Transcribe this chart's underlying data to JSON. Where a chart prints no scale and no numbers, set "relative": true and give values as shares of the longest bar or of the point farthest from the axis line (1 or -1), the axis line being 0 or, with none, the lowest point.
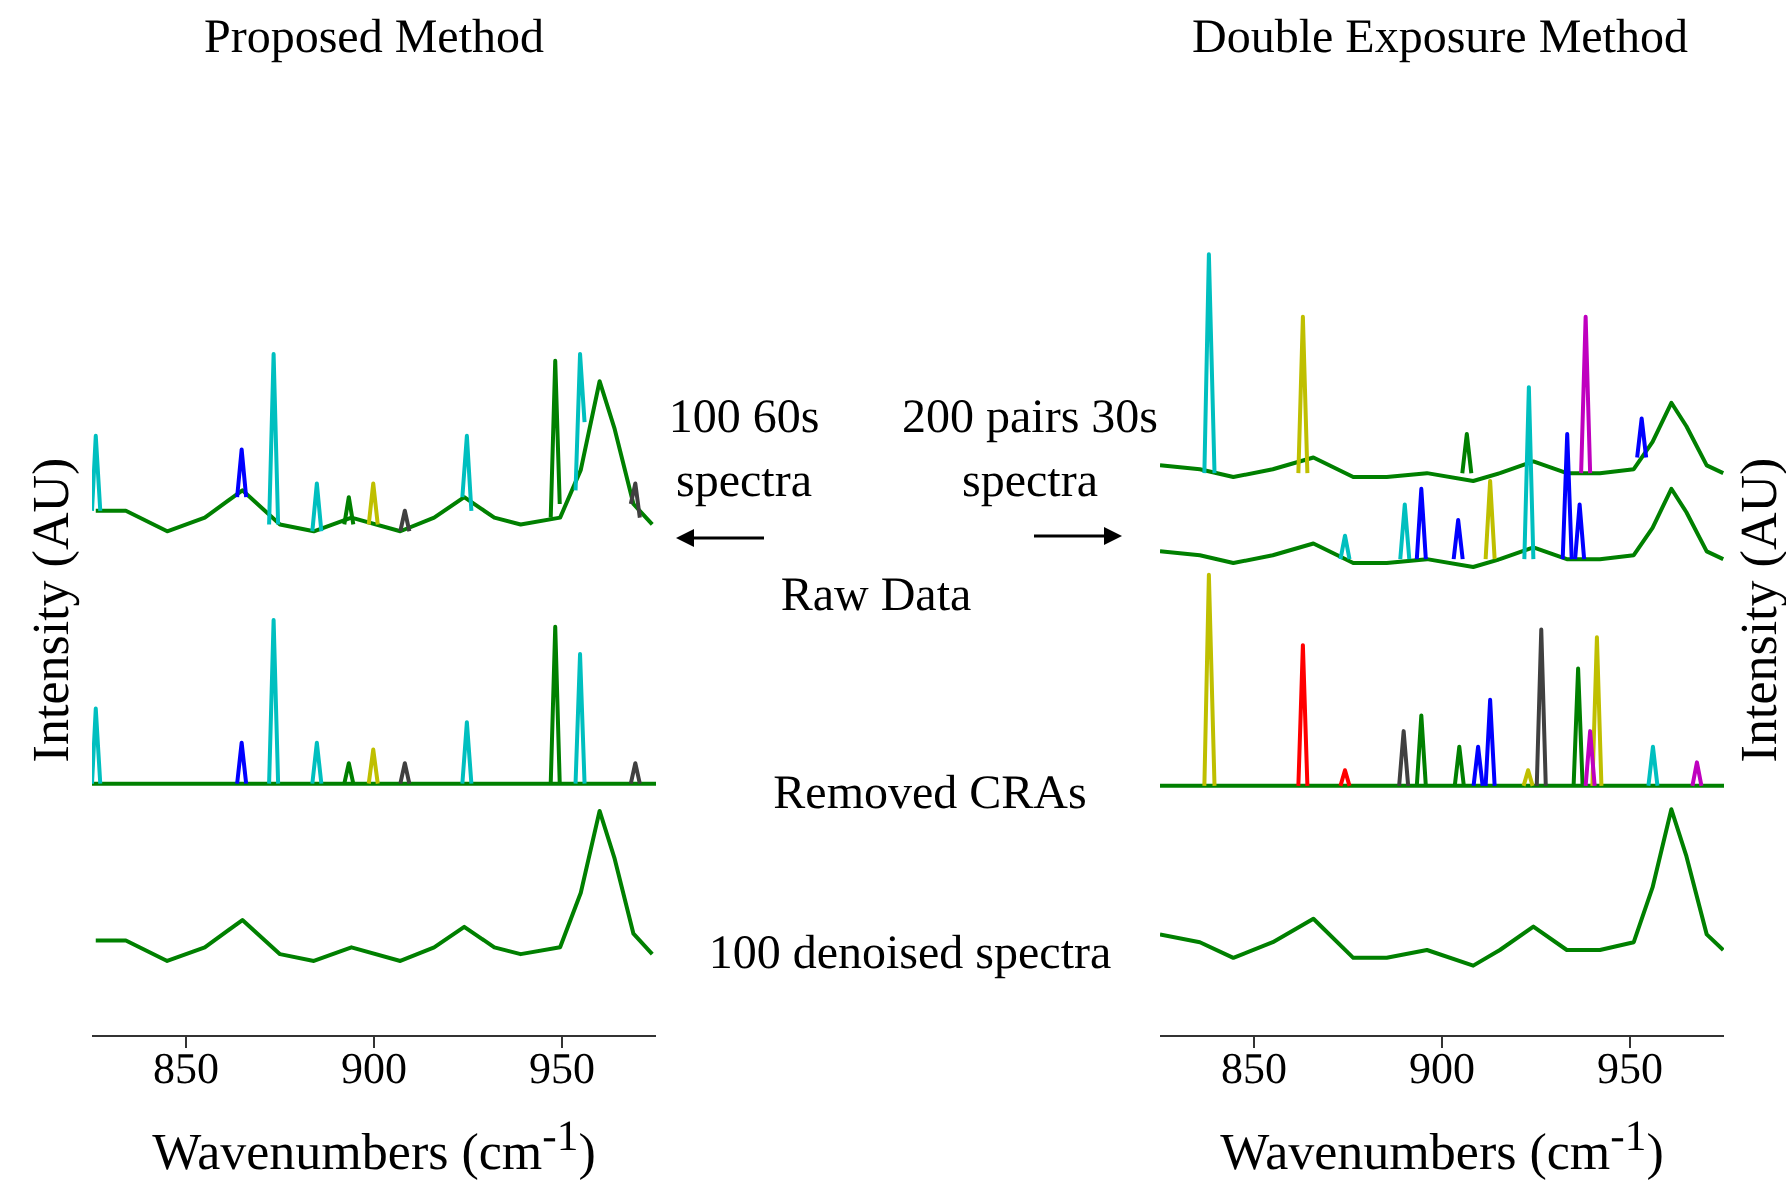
{
  "chart_data": [
    {
      "type": "line",
      "title": "Proposed Method",
      "xlabel": "Wavenumbers (cm$^{-1}$)",
      "ylabel": "Intensity (AU)",
      "relative": true,
      "xlim": [
        825,
        975
      ],
      "xticks": [
        850,
        900,
        950
      ],
      "annotations": [
        "100 60s spectra",
        "Raw Data",
        "Removed CRAs",
        "100 denoised spectra"
      ],
      "series": [
        {
          "color": "#008000",
          "x": [
            826,
            834,
            845,
            855,
            865,
            875,
            884,
            894,
            907,
            916,
            924,
            932,
            939,
            949.5,
            955,
            960,
            964,
            969,
            974
          ],
          "values": [
            0.77,
            0.77,
            0.74,
            0.76,
            0.8,
            0.75,
            0.74,
            0.76,
            0.74,
            0.76,
            0.79,
            0.76,
            0.75,
            0.76,
            0.83,
            0.96,
            0.89,
            0.78,
            0.75
          ]
        },
        {
          "color": "#008000",
          "x": [
            825,
            975
          ],
          "values": [
            0.37,
            0.37
          ]
        },
        {
          "color": "#008000",
          "x": [
            826,
            834,
            845,
            855,
            865,
            875,
            884,
            894,
            907,
            916,
            924,
            932,
            939,
            949.5,
            955,
            960,
            964,
            969,
            974
          ],
          "values": [
            0.14,
            0.14,
            0.11,
            0.13,
            0.17,
            0.12,
            0.11,
            0.13,
            0.11,
            0.13,
            0.16,
            0.13,
            0.12,
            0.13,
            0.21,
            0.33,
            0.26,
            0.15,
            0.12
          ]
        },
        {
          "color": "#00bfbf",
          "x": [
            825,
            826,
            827.2
          ],
          "values": [
            0.77,
            0.88,
            0.77
          ]
        },
        {
          "color": "#00bfbf",
          "x": [
            872.1,
            873.3,
            874.5
          ],
          "values": [
            0.75,
            1,
            0.75
          ]
        },
        {
          "color": "#00bfbf",
          "x": [
            883.6,
            884.8,
            886
          ],
          "values": [
            0.74,
            0.81,
            0.74
          ]
        },
        {
          "color": "#00bfbf",
          "x": [
            923.5,
            924.7,
            925.9
          ],
          "values": [
            0.79,
            0.88,
            0.77
          ]
        },
        {
          "color": "#00bfbf",
          "x": [
            953.6,
            954.8,
            956
          ],
          "values": [
            0.8,
            1,
            0.9
          ]
        },
        {
          "color": "#00bfbf",
          "x": [
            825,
            826,
            827.2
          ],
          "values": [
            0.37,
            0.48,
            0.37
          ]
        },
        {
          "color": "#00bfbf",
          "x": [
            872.1,
            873.3,
            874.5
          ],
          "values": [
            0.37,
            0.61,
            0.37
          ]
        },
        {
          "color": "#00bfbf",
          "x": [
            883.6,
            884.8,
            886
          ],
          "values": [
            0.37,
            0.43,
            0.37
          ]
        },
        {
          "color": "#00bfbf",
          "x": [
            923.5,
            924.7,
            925.9
          ],
          "values": [
            0.37,
            0.46,
            0.37
          ]
        },
        {
          "color": "#00bfbf",
          "x": [
            953.6,
            954.8,
            956
          ],
          "values": [
            0.37,
            0.56,
            0.37
          ]
        },
        {
          "color": "#0000ff",
          "x": [
            863.6,
            864.8,
            866
          ],
          "values": [
            0.79,
            0.86,
            0.79
          ]
        },
        {
          "color": "#0000ff",
          "x": [
            863.6,
            864.8,
            866
          ],
          "values": [
            0.37,
            0.43,
            0.37
          ]
        },
        {
          "color": "#008000",
          "x": [
            892.1,
            893.3,
            894.5
          ],
          "values": [
            0.75,
            0.79,
            0.75
          ]
        },
        {
          "color": "#008000",
          "x": [
            947,
            948.2,
            949.4
          ],
          "values": [
            0.76,
            0.99,
            0.78
          ]
        },
        {
          "color": "#008000",
          "x": [
            892.1,
            893.3,
            894.5
          ],
          "values": [
            0.37,
            0.4,
            0.37
          ]
        },
        {
          "color": "#008000",
          "x": [
            947,
            948.2,
            949.4
          ],
          "values": [
            0.37,
            0.6,
            0.37
          ]
        },
        {
          "color": "#bfbf00",
          "x": [
            898.6,
            899.8,
            901
          ],
          "values": [
            0.75,
            0.81,
            0.75
          ]
        },
        {
          "color": "#bfbf00",
          "x": [
            898.6,
            899.8,
            901
          ],
          "values": [
            0.37,
            0.42,
            0.37
          ]
        },
        {
          "color": "#404040",
          "x": [
            907,
            908.2,
            909.4
          ],
          "values": [
            0.74,
            0.77,
            0.74
          ]
        },
        {
          "color": "#404040",
          "x": [
            968.3,
            969.5,
            970.7
          ],
          "values": [
            0.78,
            0.81,
            0.76
          ]
        },
        {
          "color": "#404040",
          "x": [
            907,
            908.2,
            909.4
          ],
          "values": [
            0.37,
            0.4,
            0.37
          ]
        },
        {
          "color": "#404040",
          "x": [
            968.3,
            969.5,
            970.7
          ],
          "values": [
            0.37,
            0.4,
            0.37
          ]
        }
      ]
    },
    {
      "type": "line",
      "title": "Double Exposure Method",
      "xlabel": "Wavenumbers (cm$^{-1}$)",
      "ylabel": "Intensity (AU)",
      "relative": true,
      "xlim": [
        825,
        975
      ],
      "xticks": [
        850,
        900,
        950
      ],
      "annotations": [
        "200 pairs 30s spectra"
      ],
      "series": [
        {
          "color": "#008000",
          "x": [
            825,
            835.6,
            844.5,
            855,
            865.8,
            876.4,
            885.3,
            896,
            908.3,
            915.4,
            924.3,
            933.2,
            942,
            951,
            956,
            961,
            965,
            970.4,
            974.8
          ],
          "values": [
            0.73,
            0.725,
            0.715,
            0.725,
            0.74,
            0.715,
            0.715,
            0.72,
            0.71,
            0.72,
            0.735,
            0.72,
            0.72,
            0.725,
            0.76,
            0.81,
            0.78,
            0.73,
            0.72
          ]
        },
        {
          "color": "#008000",
          "x": [
            825,
            835.6,
            844.5,
            855,
            865.8,
            876.4,
            885.3,
            896,
            908.3,
            915.4,
            924.3,
            933.2,
            942,
            951,
            956,
            961,
            965,
            970.4,
            974.8
          ],
          "values": [
            0.62,
            0.615,
            0.605,
            0.615,
            0.63,
            0.605,
            0.605,
            0.61,
            0.6,
            0.61,
            0.625,
            0.61,
            0.61,
            0.615,
            0.65,
            0.7,
            0.67,
            0.62,
            0.61
          ]
        },
        {
          "color": "#008000",
          "x": [
            825,
            975
          ],
          "values": [
            0.32,
            0.32
          ]
        },
        {
          "color": "#008000",
          "x": [
            825,
            835.6,
            844.5,
            855,
            865.8,
            876.4,
            885.3,
            896,
            908.3,
            915.4,
            924.3,
            933.2,
            942,
            951,
            956,
            961,
            965,
            970.4,
            974.8
          ],
          "values": [
            0.13,
            0.12,
            0.1,
            0.12,
            0.15,
            0.1,
            0.1,
            0.11,
            0.09,
            0.11,
            0.14,
            0.11,
            0.11,
            0.12,
            0.19,
            0.29,
            0.23,
            0.13,
            0.11
          ]
        },
        {
          "color": "#00bfbf",
          "x": [
            836.8,
            838,
            839.5
          ],
          "values": [
            0.72,
            1,
            0.72
          ]
        },
        {
          "color": "#00bfbf",
          "x": [
            873,
            874.2,
            875.4
          ],
          "values": [
            0.61,
            0.64,
            0.61
          ]
        },
        {
          "color": "#00bfbf",
          "x": [
            888.9,
            890.1,
            891.3
          ],
          "values": [
            0.61,
            0.68,
            0.61
          ]
        },
        {
          "color": "#00bfbf",
          "x": [
            921.9,
            923.1,
            924.3
          ],
          "values": [
            0.61,
            0.83,
            0.61
          ]
        },
        {
          "color": "#00bfbf",
          "x": [
            954.9,
            956.1,
            957.3
          ],
          "values": [
            0.32,
            0.37,
            0.32
          ]
        },
        {
          "color": "#bfbf00",
          "x": [
            861.8,
            863,
            864.2
          ],
          "values": [
            0.72,
            0.92,
            0.72
          ]
        },
        {
          "color": "#bfbf00",
          "x": [
            911.6,
            912.8,
            914
          ],
          "values": [
            0.61,
            0.71,
            0.61
          ]
        },
        {
          "color": "#bfbf00",
          "x": [
            836.8,
            838,
            839.5
          ],
          "values": [
            0.32,
            0.59,
            0.32
          ]
        },
        {
          "color": "#bfbf00",
          "x": [
            921.7,
            922.9,
            924.1
          ],
          "values": [
            0.32,
            0.34,
            0.32
          ]
        },
        {
          "color": "#bfbf00",
          "x": [
            940,
            941.2,
            942.4
          ],
          "values": [
            0.32,
            0.51,
            0.32
          ]
        },
        {
          "color": "#008000",
          "x": [
            905.4,
            906.6,
            907.8
          ],
          "values": [
            0.72,
            0.77,
            0.72
          ]
        },
        {
          "color": "#008000",
          "x": [
            893.3,
            894.5,
            895.7
          ],
          "values": [
            0.32,
            0.41,
            0.32
          ]
        },
        {
          "color": "#008000",
          "x": [
            903.4,
            904.6,
            905.8
          ],
          "values": [
            0.32,
            0.37,
            0.32
          ]
        },
        {
          "color": "#008000",
          "x": [
            935,
            936.2,
            937.4
          ],
          "values": [
            0.32,
            0.47,
            0.32
          ]
        },
        {
          "color": "#bf00bf",
          "x": [
            937,
            938.2,
            939.4
          ],
          "values": [
            0.72,
            0.92,
            0.72
          ]
        },
        {
          "color": "#bf00bf",
          "x": [
            938.2,
            939.4,
            940.6
          ],
          "values": [
            0.32,
            0.39,
            0.32
          ]
        },
        {
          "color": "#bf00bf",
          "x": [
            966.6,
            967.8,
            969
          ],
          "values": [
            0.32,
            0.35,
            0.32
          ]
        },
        {
          "color": "#0000ff",
          "x": [
            951.9,
            953.1,
            954.3
          ],
          "values": [
            0.74,
            0.79,
            0.74
          ]
        },
        {
          "color": "#0000ff",
          "x": [
            893.3,
            894.5,
            895.7
          ],
          "values": [
            0.61,
            0.7,
            0.61
          ]
        },
        {
          "color": "#0000ff",
          "x": [
            903.1,
            904.3,
            905.5
          ],
          "values": [
            0.61,
            0.66,
            0.61
          ]
        },
        {
          "color": "#0000ff",
          "x": [
            932.1,
            933.3,
            934.5
          ],
          "values": [
            0.61,
            0.77,
            0.61
          ]
        },
        {
          "color": "#0000ff",
          "x": [
            935.4,
            936.6,
            937.8
          ],
          "values": [
            0.61,
            0.68,
            0.61
          ]
        },
        {
          "color": "#0000ff",
          "x": [
            908.4,
            909.6,
            910.8
          ],
          "values": [
            0.32,
            0.37,
            0.32
          ]
        },
        {
          "color": "#0000ff",
          "x": [
            911.6,
            912.8,
            914
          ],
          "values": [
            0.32,
            0.43,
            0.32
          ]
        },
        {
          "color": "#ff0000",
          "x": [
            861.8,
            863,
            864.2
          ],
          "values": [
            0.32,
            0.5,
            0.32
          ]
        },
        {
          "color": "#ff0000",
          "x": [
            873,
            874.2,
            875.4
          ],
          "values": [
            0.32,
            0.34,
            0.32
          ]
        },
        {
          "color": "#404040",
          "x": [
            888.6,
            889.8,
            891
          ],
          "values": [
            0.32,
            0.39,
            0.32
          ]
        },
        {
          "color": "#404040",
          "x": [
            925.2,
            926.4,
            927.6
          ],
          "values": [
            0.32,
            0.52,
            0.32
          ]
        }
      ]
    }
  ]
}
